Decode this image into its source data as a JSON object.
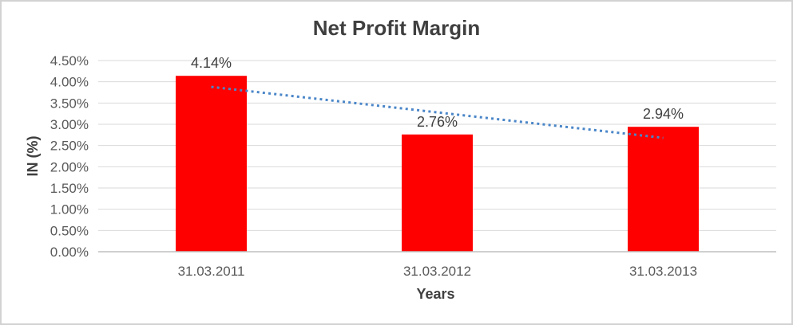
{
  "chart": {
    "title": "Net Profit Margin",
    "y_axis_title": "IN (%)",
    "x_axis_title": "Years"
  },
  "chart_data": {
    "type": "bar",
    "title": "Net Profit Margin",
    "xlabel": "Years",
    "ylabel": "IN (%)",
    "categories": [
      "31.03.2011",
      "31.03.2012",
      "31.03.2013"
    ],
    "values": [
      4.14,
      2.76,
      2.94
    ],
    "data_labels": [
      "4.14%",
      "2.76%",
      "2.94%"
    ],
    "ylim": [
      0,
      4.5
    ],
    "ytick_step": 0.5,
    "ytick_labels": [
      "0.00%",
      "0.50%",
      "1.00%",
      "1.50%",
      "2.00%",
      "2.50%",
      "3.00%",
      "3.50%",
      "4.00%",
      "4.50%"
    ],
    "grid": true,
    "legend_position": "none",
    "trendline": {
      "type": "linear",
      "style": "dotted",
      "start_value": 3.88,
      "end_value": 2.68
    }
  },
  "colors": {
    "bar": "#ff0000",
    "trendline": "#4a86c8",
    "gridline": "#d9d9d9",
    "axis_line": "#bfbfbf",
    "tick_text": "#595959",
    "label_text": "#3f3f3f"
  }
}
